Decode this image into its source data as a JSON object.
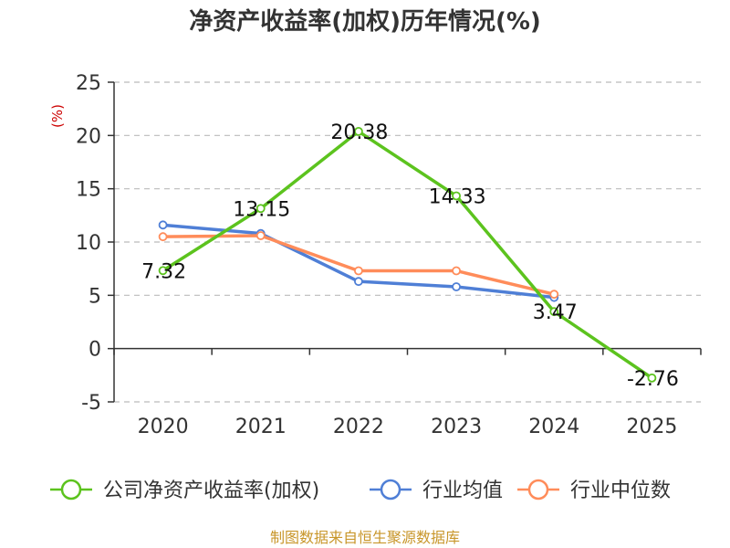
{
  "chart_data": {
    "type": "line",
    "title": "净资产收益率(加权)历年情况(%)",
    "ylabel": "(%)",
    "categories": [
      "2020",
      "2021",
      "2022",
      "2023",
      "2024",
      "2025"
    ],
    "ylim": [
      -5,
      25
    ],
    "yticks": [
      -5,
      0,
      5,
      10,
      15,
      20,
      25
    ],
    "grid": true,
    "legend_position": "bottom",
    "series": [
      {
        "name": "公司净资产收益率(加权)",
        "color": "#5cc31e",
        "values": [
          7.32,
          13.15,
          20.38,
          14.33,
          3.47,
          -2.76
        ],
        "labels": [
          "7.32",
          "13.15",
          "20.38",
          "14.33",
          "3.47",
          "-2.76"
        ]
      },
      {
        "name": "行业均值",
        "color": "#4f7fd6",
        "values": [
          11.6,
          10.8,
          6.3,
          5.8,
          4.8,
          null
        ]
      },
      {
        "name": "行业中位数",
        "color": "#ff8c5a",
        "values": [
          10.5,
          10.6,
          7.3,
          7.3,
          5.1,
          null
        ]
      }
    ],
    "source": "制图数据来自恒生聚源数据库"
  }
}
